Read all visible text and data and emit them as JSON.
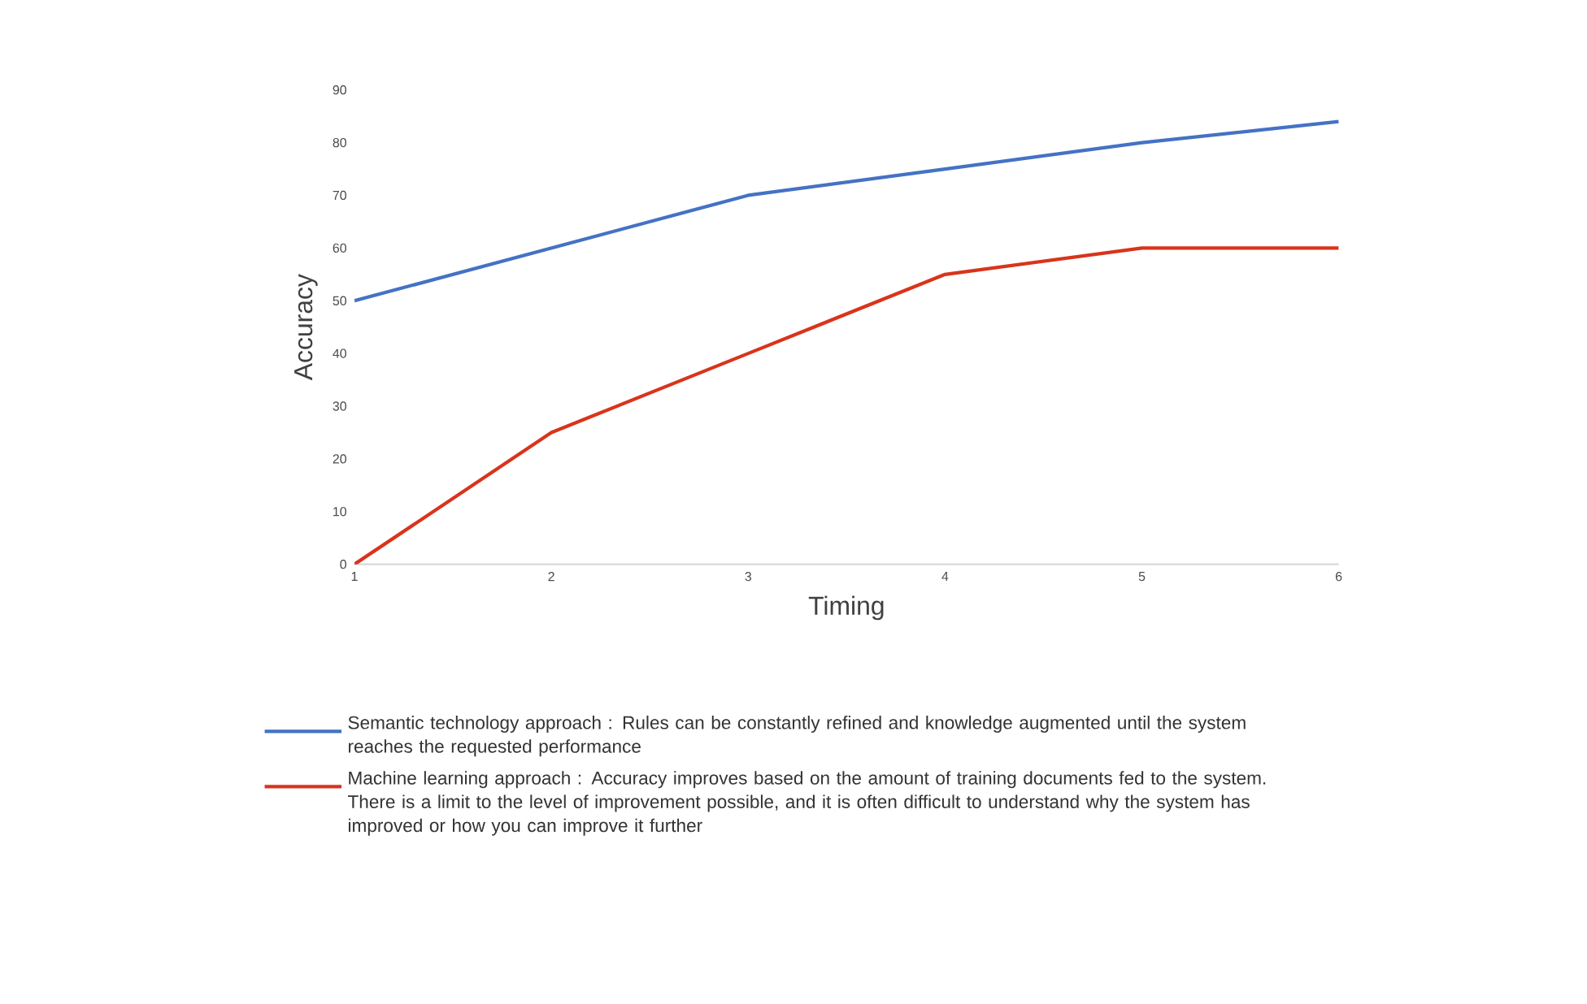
{
  "chart_data": {
    "type": "line",
    "xlabel": "Timing",
    "ylabel": "Accuracy",
    "x": [
      1,
      2,
      3,
      4,
      5,
      6
    ],
    "series": [
      {
        "name": "Semantic technology approach : Rules can be constantly refined and knowledge augmented until the system reaches the requested performance",
        "color": "#4472c4",
        "values": [
          50,
          60,
          70,
          75,
          80,
          84
        ]
      },
      {
        "name": "Machine learning approach : Accuracy improves based on the amount of training documents fed to the system. There is a limit to the level of improvement possible, and it is often difficult to understand why the system has improved or how you can improve it further",
        "color": "#d9341c",
        "values": [
          0,
          25,
          40,
          55,
          60,
          60
        ]
      }
    ],
    "xlim": [
      1,
      6
    ],
    "xticks": [
      1,
      2,
      3,
      4,
      5,
      6
    ],
    "ylim": [
      0,
      90
    ],
    "yticks": [
      0,
      10,
      20,
      30,
      40,
      50,
      60,
      70,
      80,
      90
    ],
    "legend": "bottom",
    "grid": false,
    "marker": "none",
    "line_style": "solid"
  }
}
